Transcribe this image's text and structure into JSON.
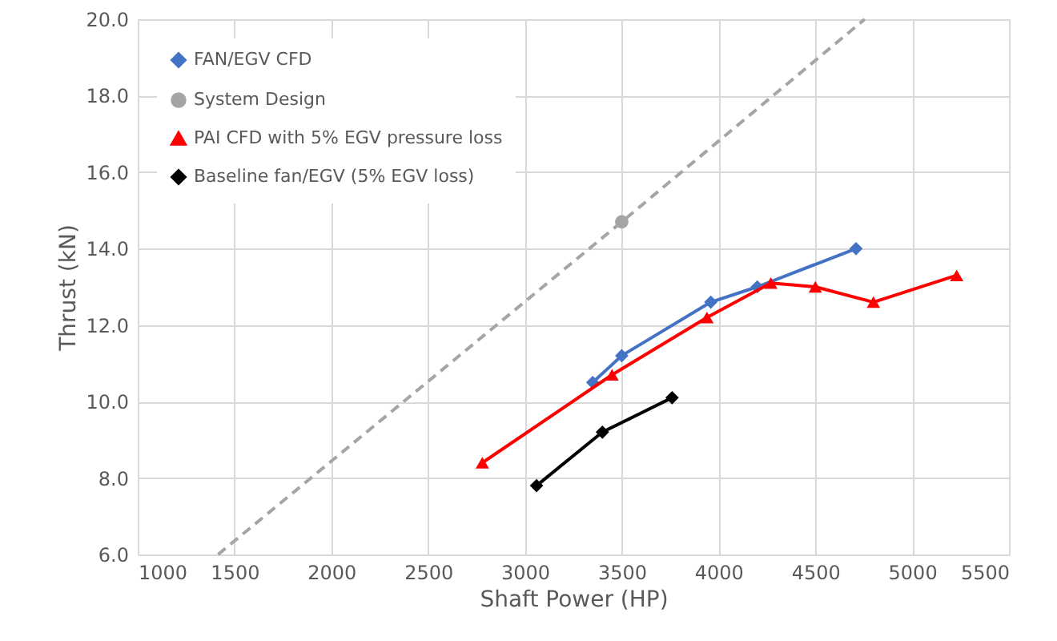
{
  "chart_data": {
    "type": "line",
    "xlabel": "Shaft Power (HP)",
    "ylabel": "Thrust (kN)",
    "xlim": [
      1000,
      5500
    ],
    "xticks": [
      1000,
      1500,
      2000,
      2500,
      3000,
      3500,
      4000,
      4500,
      5000,
      5500
    ],
    "ylim": [
      6,
      20
    ],
    "yticks": [
      {
        "value": 6,
        "label": "6.0"
      },
      {
        "value": 8,
        "label": "8.0"
      },
      {
        "value": 10,
        "label": "10.0"
      },
      {
        "value": 12,
        "label": "12.0"
      },
      {
        "value": 14,
        "label": "14.0"
      },
      {
        "value": 16,
        "label": "16.0"
      },
      {
        "value": 18,
        "label": "18.0"
      },
      {
        "value": 20,
        "label": "20.0"
      }
    ],
    "grid": true,
    "legend": "top left",
    "series": [
      {
        "name": "FAN/EGV CFD",
        "color": "#4472c4",
        "marker": "diamond",
        "line_style": "solid",
        "x": [
          3350,
          3500,
          3960,
          4200,
          4710
        ],
        "values": [
          10.5,
          11.2,
          12.6,
          13.0,
          14.0
        ]
      },
      {
        "name": "System Design",
        "color": "#a5a5a5",
        "marker": "none",
        "line_style": "dashed",
        "x": [
          1415,
          3500,
          4755
        ],
        "values": [
          6,
          14.7,
          20
        ]
      },
      {
        "type": "scatter",
        "color": "#a5a5a5",
        "marker": "circle",
        "x": [
          3500
        ],
        "values": [
          14.7
        ]
      },
      {
        "name": "PAI CFD with 5% EGV pressure loss",
        "color": "#ff0000",
        "marker": "triangle",
        "line_style": "solid",
        "x": [
          2780,
          3450,
          3940,
          4270,
          4500,
          4800,
          5230
        ],
        "values": [
          8.4,
          10.7,
          12.2,
          13.1,
          13.0,
          12.6,
          13.3
        ]
      },
      {
        "name": "Baseline fan/EGV (5% EGV loss)",
        "color": "#000000",
        "marker": "diamond",
        "line_style": "solid",
        "x": [
          3060,
          3400,
          3760
        ],
        "values": [
          7.8,
          9.2,
          10.1
        ]
      }
    ]
  }
}
